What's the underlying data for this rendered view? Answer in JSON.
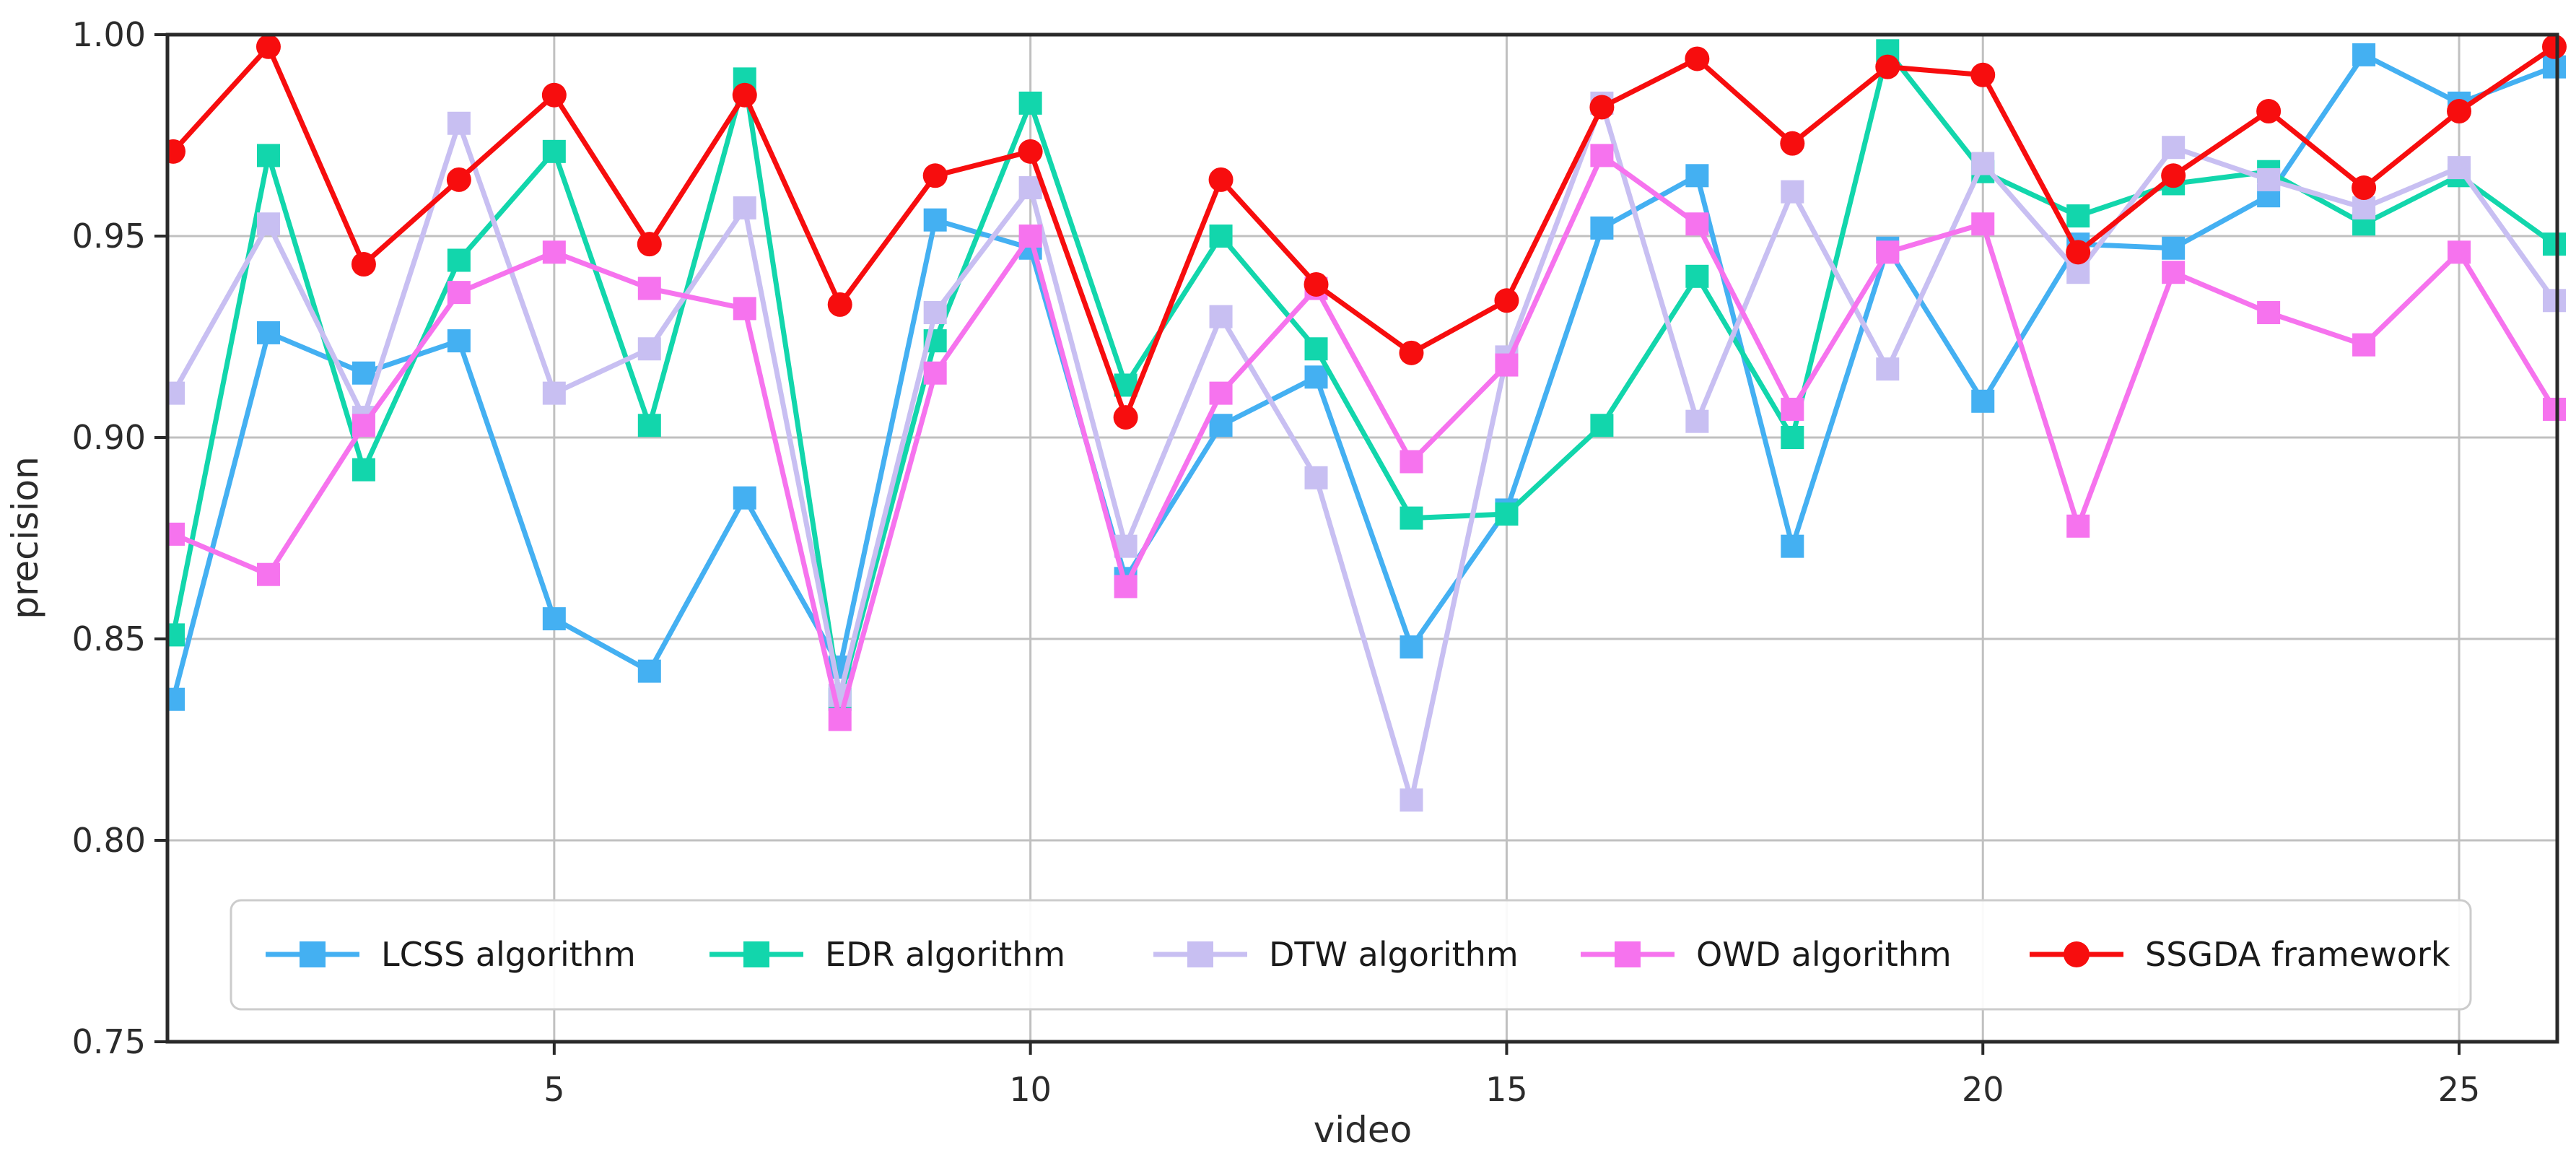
{
  "chart_data": {
    "type": "line",
    "title": "",
    "xlabel": "video",
    "ylabel": "precision",
    "x": [
      1,
      2,
      3,
      4,
      5,
      6,
      7,
      8,
      9,
      10,
      11,
      12,
      13,
      14,
      15,
      16,
      17,
      18,
      19,
      20,
      21,
      22,
      23,
      24,
      25,
      26
    ],
    "xticks": [
      5,
      10,
      15,
      20,
      25
    ],
    "yticks": [
      0.75,
      0.8,
      0.85,
      0.9,
      0.95,
      1.0
    ],
    "ylim": [
      0.75,
      1.0
    ],
    "xlim": [
      0.94,
      26.03
    ],
    "grid": true,
    "legend_position": "bottom-inside",
    "series": [
      {
        "name": "LCSS algorithm",
        "marker": "square",
        "color": "#44b0f2",
        "values": [
          0.835,
          0.926,
          0.916,
          0.924,
          0.855,
          0.842,
          0.885,
          0.843,
          0.954,
          0.947,
          0.865,
          0.903,
          0.915,
          0.848,
          0.882,
          0.952,
          0.965,
          0.873,
          0.947,
          0.909,
          0.948,
          0.947,
          0.96,
          0.995,
          0.983,
          0.992
        ]
      },
      {
        "name": "EDR algorithm",
        "marker": "square",
        "color": "#12d6ac",
        "values": [
          0.851,
          0.97,
          0.892,
          0.944,
          0.971,
          0.903,
          0.989,
          0.835,
          0.924,
          0.983,
          0.913,
          0.95,
          0.922,
          0.88,
          0.881,
          0.903,
          0.94,
          0.9,
          0.996,
          0.966,
          0.955,
          0.963,
          0.966,
          0.953,
          0.965,
          0.948
        ]
      },
      {
        "name": "DTW algorithm",
        "marker": "square",
        "color": "#c8bff2",
        "values": [
          0.911,
          0.953,
          0.905,
          0.978,
          0.911,
          0.922,
          0.957,
          0.836,
          0.931,
          0.962,
          0.873,
          0.93,
          0.89,
          0.81,
          0.92,
          0.983,
          0.904,
          0.961,
          0.917,
          0.968,
          0.941,
          0.972,
          0.964,
          0.957,
          0.967,
          0.934
        ]
      },
      {
        "name": "OWD algorithm",
        "marker": "square",
        "color": "#f673ee",
        "values": [
          0.876,
          0.866,
          0.903,
          0.936,
          0.946,
          0.937,
          0.932,
          0.83,
          0.916,
          0.95,
          0.863,
          0.911,
          0.937,
          0.894,
          0.918,
          0.97,
          0.953,
          0.907,
          0.946,
          0.953,
          0.878,
          0.941,
          0.931,
          0.923,
          0.946,
          0.907
        ]
      },
      {
        "name": "SSGDA framework",
        "marker": "circle",
        "color": "#f70d0e",
        "values": [
          0.971,
          0.997,
          0.943,
          0.964,
          0.985,
          0.948,
          0.985,
          0.933,
          0.965,
          0.971,
          0.905,
          0.964,
          0.938,
          0.921,
          0.934,
          0.982,
          0.994,
          0.973,
          0.992,
          0.99,
          0.946,
          0.965,
          0.981,
          0.962,
          0.981,
          0.997
        ]
      }
    ]
  },
  "style_colors": {
    "spine": "#2a2a2a",
    "grid": "#c0c0c0",
    "tick_text": "#2b2b2b",
    "legend_border": "#cccccc",
    "legend_bg": "#ffffff"
  }
}
